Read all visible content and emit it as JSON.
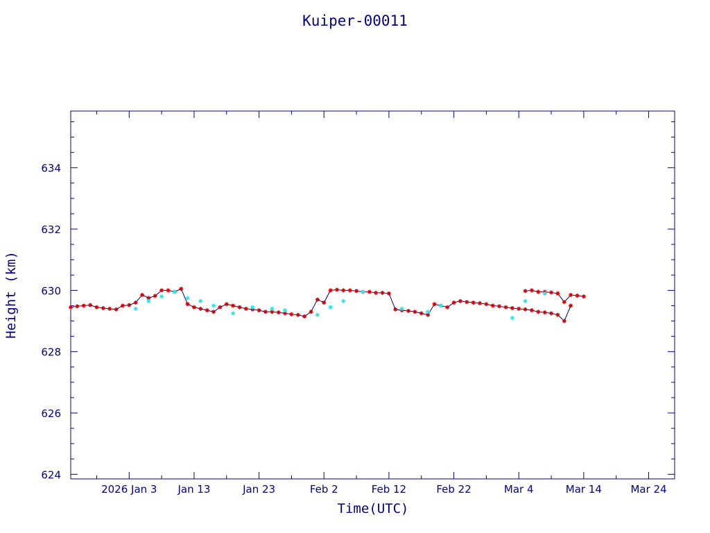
{
  "chart_data": {
    "type": "line",
    "title": "Kuiper-00011",
    "xlabel": "Time(UTC)",
    "ylabel": "Height (km)",
    "x_ticks": [
      "2026 Jan  3",
      "Jan 13",
      "Jan 23",
      "Feb  2",
      "Feb 12",
      "Feb 22",
      "Mar  4",
      "Mar 14",
      "Mar 24"
    ],
    "xlim": [
      "2025-12-25",
      "2026-03-28"
    ],
    "y_ticks": [
      "624",
      "626",
      "628",
      "630",
      "632",
      "634"
    ],
    "ylim": [
      623.85,
      635.85
    ],
    "grid": false,
    "legend": "none",
    "colors": {
      "axis": "#00008b",
      "line": "#00008b",
      "marker_a": "#d40000",
      "marker_b": "#33e5e5"
    },
    "series": [
      {
        "marker": "red-star",
        "x": [
          "2025-12-25",
          "2025-12-26",
          "2025-12-27",
          "2025-12-28",
          "2025-12-29",
          "2025-12-30",
          "2025-12-31",
          "2026-01-01",
          "2026-01-02",
          "2026-01-03",
          "2026-01-04",
          "2026-01-05",
          "2026-01-06",
          "2026-01-07",
          "2026-01-08",
          "2026-01-09",
          "2026-01-10",
          "2026-01-11",
          "2026-01-12",
          "2026-01-13",
          "2026-01-14",
          "2026-01-15",
          "2026-01-16",
          "2026-01-17",
          "2026-01-18",
          "2026-01-19",
          "2026-01-20",
          "2026-01-21",
          "2026-01-22",
          "2026-01-23",
          "2026-01-24",
          "2026-01-25",
          "2026-01-26",
          "2026-01-27",
          "2026-01-28",
          "2026-01-29",
          "2026-01-30",
          "2026-01-31",
          "2026-02-01",
          "2026-02-02",
          "2026-02-03",
          "2026-02-04",
          "2026-02-05",
          "2026-02-06",
          "2026-02-07",
          "2026-02-08",
          "2026-02-09",
          "2026-02-10",
          "2026-02-11",
          "2026-02-12",
          "2026-02-13",
          "2026-02-14",
          "2026-02-15",
          "2026-02-16",
          "2026-02-17",
          "2026-02-18",
          "2026-02-19",
          "2026-02-20",
          "2026-02-21",
          "2026-02-22",
          "2026-02-23",
          "2026-02-24",
          "2026-02-25",
          "2026-02-26",
          "2026-02-27",
          "2026-02-28",
          "2026-03-01",
          "2026-03-02",
          "2026-03-03",
          "2026-03-04",
          "2026-03-05",
          "2026-03-06",
          "2026-03-07",
          "2026-03-08",
          "2026-03-09",
          "2026-03-10",
          "2026-03-11",
          "2026-03-12"
        ],
        "y": [
          629.45,
          629.48,
          629.5,
          629.52,
          629.45,
          629.42,
          629.4,
          629.38,
          629.5,
          629.52,
          629.6,
          629.85,
          629.75,
          629.82,
          630.0,
          630.0,
          629.95,
          630.05,
          629.55,
          629.45,
          629.4,
          629.35,
          629.3,
          629.45,
          629.55,
          629.5,
          629.45,
          629.4,
          629.38,
          629.35,
          629.3,
          629.3,
          629.28,
          629.25,
          629.22,
          629.2,
          629.15,
          629.3,
          629.7,
          629.6,
          630.0,
          630.02,
          630.0,
          630.0,
          629.98,
          629.95,
          629.95,
          629.92,
          629.92,
          629.9,
          629.38,
          629.35,
          629.33,
          629.3,
          629.25,
          629.2,
          629.55,
          629.5,
          629.45,
          629.6,
          629.65,
          629.62,
          629.6,
          629.58,
          629.55,
          629.5,
          629.48,
          629.45,
          629.42,
          629.4,
          629.38,
          629.35,
          629.3,
          629.28,
          629.25,
          629.2,
          629.0,
          629.5
        ]
      },
      {
        "marker": "red-star",
        "x": [
          "2026-03-05",
          "2026-03-06",
          "2026-03-07",
          "2026-03-08",
          "2026-03-09",
          "2026-03-10",
          "2026-03-11",
          "2026-03-12",
          "2026-03-13",
          "2026-03-14"
        ],
        "y": [
          629.98,
          630.0,
          629.95,
          629.95,
          629.93,
          629.9,
          629.62,
          629.85,
          629.83,
          629.8
        ]
      },
      {
        "marker": "cyan-star",
        "x": [
          "2026-01-04",
          "2026-01-06",
          "2026-01-08",
          "2026-01-10",
          "2026-01-12",
          "2026-01-14",
          "2026-01-16",
          "2026-01-19",
          "2026-01-22",
          "2026-01-25",
          "2026-01-27",
          "2026-02-01",
          "2026-02-03",
          "2026-02-05",
          "2026-02-08",
          "2026-02-14",
          "2026-02-18",
          "2026-02-20",
          "2026-03-03",
          "2026-03-05",
          "2026-03-08"
        ],
        "y": [
          629.4,
          629.65,
          629.8,
          629.95,
          629.75,
          629.65,
          629.5,
          629.25,
          629.45,
          629.4,
          629.35,
          629.2,
          629.45,
          629.65,
          629.95,
          629.4,
          629.3,
          629.5,
          629.1,
          629.65,
          629.9
        ]
      }
    ]
  }
}
